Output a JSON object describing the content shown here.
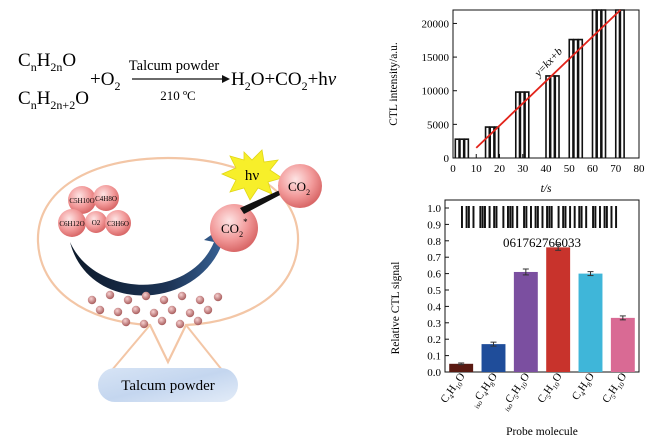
{
  "reaction": {
    "reactant1_base": "C",
    "reactant1_sub1": "n",
    "reactant1_mid": "H",
    "reactant1_sub2": "2n",
    "reactant1_end": "O",
    "reactant2_base": "C",
    "reactant2_sub1": "n",
    "reactant2_mid": "H",
    "reactant2_sub2": "2n+2",
    "reactant2_end": "O",
    "plus_o2": "+O",
    "o2_sub": "2",
    "catalyst": "Talcum powder",
    "temperature": "210 ºC",
    "products_a": "H",
    "products_a_sub": "2",
    "products_b": "O+CO",
    "products_b_sub": "2",
    "products_c": "+h",
    "products_nu": "ν"
  },
  "schematic": {
    "hv_label": "hν",
    "co2_star": "CO",
    "co2_star_sub": "2",
    "co2_star_sup": "*",
    "co2": "CO",
    "co2_sub": "2",
    "molecule_labels": [
      "C5H10O",
      "C4H8O",
      "C6H12O",
      "O2",
      "C3H6O"
    ],
    "platform_label": "Talcum powder"
  },
  "chart_data": [
    {
      "type": "line",
      "ylabel": "CTL intensity/a.u.",
      "xlabel": "t/s",
      "xlim": [
        0,
        80
      ],
      "ylim": [
        0,
        22000
      ],
      "xticks": [
        0,
        10,
        20,
        30,
        40,
        50,
        60,
        70,
        80
      ],
      "yticks": [
        0,
        5000,
        10000,
        15000,
        20000
      ],
      "fit_label": "y=kx+b",
      "fit_line": {
        "x": [
          10,
          72
        ],
        "y": [
          1500,
          22000
        ]
      },
      "pulses": [
        {
          "x": [
            1,
            3,
            5
          ],
          "height": 2800
        },
        {
          "x": [
            14,
            16,
            18
          ],
          "height": 4600
        },
        {
          "x": [
            27,
            29,
            31
          ],
          "height": 9800
        },
        {
          "x": [
            40,
            42,
            44
          ],
          "height": 12200
        },
        {
          "x": [
            50,
            52,
            54
          ],
          "height": 17600
        },
        {
          "x": [
            60,
            62,
            64
          ],
          "height": 22000
        },
        {
          "x": [
            70,
            72
          ],
          "height": 22000
        }
      ]
    },
    {
      "type": "bar",
      "ylabel": "Relative CTL signal",
      "xlabel": "Probe molecule",
      "barcode_number": "061762766033",
      "ylim": [
        0,
        1.0
      ],
      "yticks": [
        "0.0",
        "0.1",
        "0.2",
        "0.3",
        "0.4",
        "0.5",
        "0.6",
        "0.7",
        "0.8",
        "0.9",
        "1.0"
      ],
      "categories": [
        {
          "pre": "",
          "base": "C",
          "s1": "4",
          "mid": "H",
          "s2": "10",
          "end": "O"
        },
        {
          "pre": "iso",
          "base": "C",
          "s1": "4",
          "mid": "H",
          "s2": "8",
          "end": "O"
        },
        {
          "pre": "iso",
          "base": "C",
          "s1": "5",
          "mid": "H",
          "s2": "10",
          "end": "O"
        },
        {
          "pre": "",
          "base": "C",
          "s1": "5",
          "mid": "H",
          "s2": "10",
          "end": "O"
        },
        {
          "pre": "",
          "base": "C",
          "s1": "4",
          "mid": "H",
          "s2": "8",
          "end": "O"
        },
        {
          "pre": "",
          "base": "C",
          "s1": "5",
          "mid": "H",
          "s2": "10",
          "end": "O"
        }
      ],
      "values": [
        0.05,
        0.17,
        0.61,
        0.76,
        0.6,
        0.33
      ],
      "errors": [
        0.005,
        0.012,
        0.018,
        0.018,
        0.012,
        0.012
      ],
      "colors": [
        "#5a1a12",
        "#1f4d9a",
        "#7b4fa0",
        "#c8332c",
        "#3fb6d9",
        "#d96a94"
      ],
      "barcode_pattern": [
        1,
        0,
        1,
        1,
        0,
        1,
        0,
        0,
        1,
        1,
        1,
        0,
        1,
        0,
        1,
        1,
        0,
        0,
        1,
        0,
        1,
        1,
        1,
        0,
        1,
        0,
        0,
        1,
        1,
        0,
        1,
        0,
        1,
        1,
        0,
        1,
        0,
        1,
        1,
        1,
        0,
        0,
        1,
        0,
        1,
        1,
        0,
        1,
        0,
        1,
        0,
        1,
        1,
        0,
        1,
        0,
        0,
        1,
        1,
        0,
        1,
        0,
        1,
        1,
        0,
        1,
        0,
        1
      ]
    }
  ]
}
